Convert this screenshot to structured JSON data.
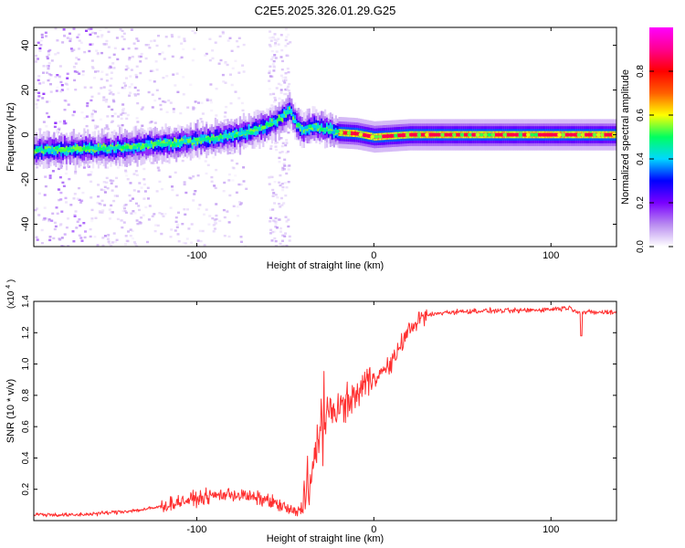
{
  "title": "C2E5.2025.326.01.29.G25",
  "chart_data": [
    {
      "type": "heatmap",
      "title": "C2E5.2025.326.01.29.G25",
      "xlabel": "Height of straight line (km)",
      "ylabel": "Frequency (Hz)",
      "xlim": [
        -192,
        137
      ],
      "ylim": [
        -50,
        48
      ],
      "xticks": [
        -100,
        0,
        100
      ],
      "xtick_labels": [
        "-100",
        "0",
        "100"
      ],
      "yticks": [
        -40,
        -20,
        0,
        20,
        40
      ],
      "ytick_labels": [
        "-40",
        "-20",
        "0",
        "20",
        "40"
      ],
      "ridge": {
        "x": [
          -192,
          -170,
          -150,
          -130,
          -110,
          -90,
          -75,
          -60,
          -52,
          -48,
          -44,
          -40,
          -35,
          -30,
          -20,
          -10,
          0,
          20,
          60,
          100,
          137
        ],
        "y": [
          -7,
          -6.5,
          -6,
          -5,
          -3.5,
          -1.5,
          0.5,
          4,
          8,
          11,
          5,
          2,
          4,
          3,
          1,
          0.5,
          -1,
          0,
          0,
          0,
          0
        ]
      },
      "colorbar": {
        "label": "Normalized spectral amplitude",
        "range": [
          0,
          1
        ],
        "ticks": [
          0.0,
          0.2,
          0.4,
          0.6,
          0.8
        ],
        "tick_labels": [
          "0.0",
          "0.2",
          "0.4",
          "0.6",
          "0.8"
        ],
        "colors": [
          "#ffffff",
          "#b98cf0",
          "#7a00ff",
          "#0000ff",
          "#00d8ff",
          "#00ff60",
          "#ffff00",
          "#ff6000",
          "#ff0000",
          "#ff0090",
          "#ff00ff"
        ]
      }
    },
    {
      "type": "line",
      "title": "",
      "xlabel": "Height of straight line (km)",
      "ylabel": "SNR (10 * v/v)",
      "y_multiplier": "(x10",
      "y_multiplier_exp": "4",
      "y_multiplier_close": ")",
      "xlim": [
        -192,
        137
      ],
      "ylim": [
        0,
        1.4
      ],
      "xticks": [
        -100,
        0,
        100
      ],
      "xtick_labels": [
        "-100",
        "0",
        "100"
      ],
      "yticks": [
        0.2,
        0.4,
        0.6,
        0.8,
        1.0,
        1.2,
        1.4
      ],
      "ytick_labels": [
        "0.2",
        "0.4",
        "0.6",
        "0.8",
        "1.0",
        "1.2",
        "1.4"
      ],
      "series": [
        {
          "name": "SNR",
          "color": "#ff3030",
          "x": [
            -192,
            -170,
            -150,
            -140,
            -130,
            -120,
            -110,
            -100,
            -90,
            -80,
            -70,
            -60,
            -50,
            -45,
            -40,
            -35,
            -32,
            -30,
            -28,
            -25,
            -20,
            -15,
            -10,
            -5,
            0,
            5,
            10,
            15,
            20,
            25,
            30,
            40,
            60,
            80,
            100,
            110,
            117,
            125,
            137
          ],
          "y": [
            0.04,
            0.035,
            0.05,
            0.06,
            0.07,
            0.09,
            0.12,
            0.14,
            0.16,
            0.17,
            0.15,
            0.13,
            0.08,
            0.05,
            0.08,
            0.3,
            0.45,
            0.55,
            0.6,
            0.7,
            0.72,
            0.75,
            0.8,
            0.88,
            0.92,
            0.95,
            1.0,
            1.12,
            1.22,
            1.28,
            1.31,
            1.33,
            1.34,
            1.34,
            1.35,
            1.36,
            1.33,
            1.33,
            1.33
          ]
        }
      ]
    }
  ]
}
